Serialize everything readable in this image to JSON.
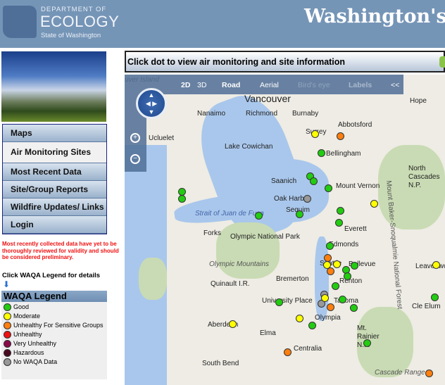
{
  "header": {
    "logo": {
      "line1": "DEPARTMENT OF",
      "line2": "ECOLOGY",
      "line3": "State of Washington"
    },
    "title": "Washington's"
  },
  "menu": [
    {
      "label": "Maps"
    },
    {
      "label": "Air Monitoring Sites",
      "active": true
    },
    {
      "label": "Most Recent Data"
    },
    {
      "label": "Site/Group Reports"
    },
    {
      "label": "Wildfire Updates/ Links"
    },
    {
      "label": "Login"
    }
  ],
  "note": "Most recently collected data have yet to be thoroughly reviewed for validity and should be considered preliminary.",
  "legend_hint": "Click WAQA Legend for details",
  "legend": {
    "title": "WAQA Legend",
    "items": [
      {
        "label": "Good",
        "color": "#22cc11"
      },
      {
        "label": "Moderate",
        "color": "#ffff00"
      },
      {
        "label": "Unhealthy For Sensitive Groups",
        "color": "#ff7f0e"
      },
      {
        "label": "Unhealthy",
        "color": "#ee1111"
      },
      {
        "label": "Very Unhealthy",
        "color": "#8b0a4a"
      },
      {
        "label": "Hazardous",
        "color": "#4a0a20"
      },
      {
        "label": "No WAQA Data",
        "color": "#999999"
      }
    ]
  },
  "map": {
    "instruction": "Click dot to view air monitoring and site information",
    "toolbar": {
      "d2": "2D",
      "d3": "3D",
      "road": "Road",
      "aerial": "Aerial",
      "birdseye": "Bird's eye",
      "labels": "Labels",
      "collapse": "<<"
    },
    "places": [
      "uver Island",
      "Vancouver",
      "Richmond",
      "Burnaby",
      "Nanaimo",
      "Abbotsford",
      "Surrey",
      "Hope",
      "Lake Cowichan",
      "Bellingham",
      "Mount Vernon",
      "Saanich",
      "Oak Harbor",
      "Strait of Juan de Fuca",
      "Sequim",
      "Forks",
      "Everett",
      "Olympic National Park",
      "Olympic Mountains",
      "Edmonds",
      "Seattle",
      "Bellevue",
      "Renton",
      "Bremerton",
      "Quinault I.R.",
      "University Place",
      "Tacoma",
      "Aberdeen",
      "Olympia",
      "Elma",
      "Centralia",
      "South Bend",
      "Leavenworth",
      "Cle Elum",
      "North Cascades N.P.",
      "Mt. Rainier N.P.",
      "Cascade Range",
      "Ucluelet",
      "Mount Baker-Snoqualmie National Forest"
    ],
    "sites": [
      "moderate",
      "usg",
      "good",
      "good",
      "good",
      "good",
      "nodata",
      "good",
      "good",
      "good",
      "moderate",
      "good",
      "good",
      "good",
      "good",
      "usg",
      "moderate",
      "moderate",
      "usg",
      "good",
      "good",
      "good",
      "good",
      "nodata",
      "nodata",
      "usg",
      "good",
      "good",
      "good",
      "moderate",
      "moderate",
      "good",
      "moderate",
      "usg",
      "good",
      "moderate",
      "good",
      "usg"
    ]
  }
}
